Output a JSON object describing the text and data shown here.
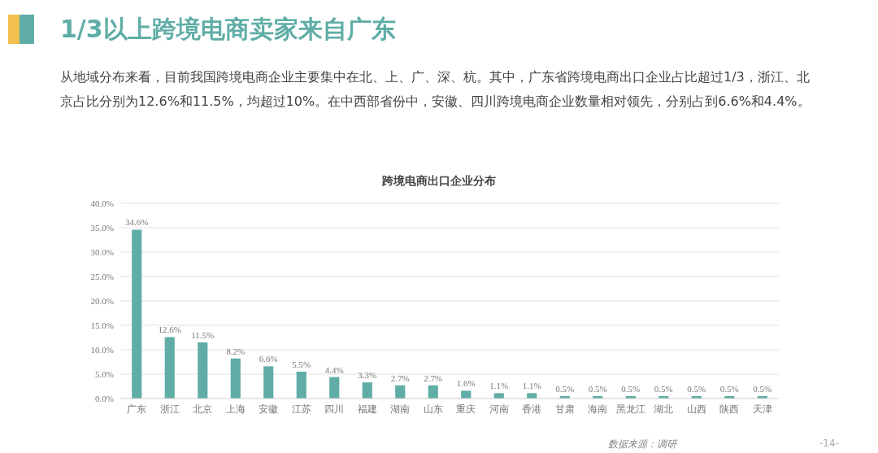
{
  "chart_data": {
    "type": "bar",
    "title": "1/3以上跨境电商卖家来自广东",
    "subtitle": "从地域分布来看，目前我国跨境电商企业主要集中在北、上、广、深、杭。其中，广东省跨境电商出口企业占比超过1/3，浙江、北京占比分别为12.6%和11.5%，均超过10%。在中西部省份中，安徽、四川跨境电商企业数量相对领先，分别占到6.6%和4.4%。",
    "annotations": [
      "跨境电商出口企业分布",
      "数据来源：调研",
      "-14-"
    ],
    "categories": [
      "广东",
      "浙江",
      "北京",
      "上海",
      "安徽",
      "江苏",
      "四川",
      "福建",
      "湖南",
      "山东",
      "重庆",
      "河南",
      "香港",
      "甘肃",
      "海南",
      "黑龙江",
      "湖北",
      "山西",
      "陕西",
      "天津"
    ],
    "values": [
      34.6,
      12.6,
      11.5,
      8.2,
      6.6,
      5.5,
      4.4,
      3.3,
      2.7,
      2.7,
      1.6,
      1.1,
      1.1,
      0.5,
      0.5,
      0.5,
      0.5,
      0.5,
      0.5,
      0.5
    ],
    "value_labels": [
      "34.6%",
      "12.6%",
      "11.5%",
      "8.2%",
      "6.6%",
      "5.5%",
      "4.4%",
      "3.3%",
      "2.7%",
      "2.7%",
      "1.6%",
      "1.1%",
      "1.1%",
      "0.5%",
      "0.5%",
      "0.5%",
      "0.5%",
      "0.5%",
      "0.5%",
      "0.5%"
    ],
    "color": "#5fada6",
    "ylim": [
      0,
      40
    ],
    "yticks": [
      {
        "value": 0,
        "label": "0.0%"
      },
      {
        "value": 5,
        "label": "5.0%"
      },
      {
        "value": 10,
        "label": "10.0%"
      },
      {
        "value": 15,
        "label": "15.0%"
      },
      {
        "value": 20,
        "label": "20.0%"
      },
      {
        "value": 25,
        "label": "25.0%"
      },
      {
        "value": 30,
        "label": "30.0%"
      },
      {
        "value": 35,
        "label": "35.0%"
      },
      {
        "value": 40,
        "label": "40.0%"
      }
    ],
    "grid": "y"
  }
}
